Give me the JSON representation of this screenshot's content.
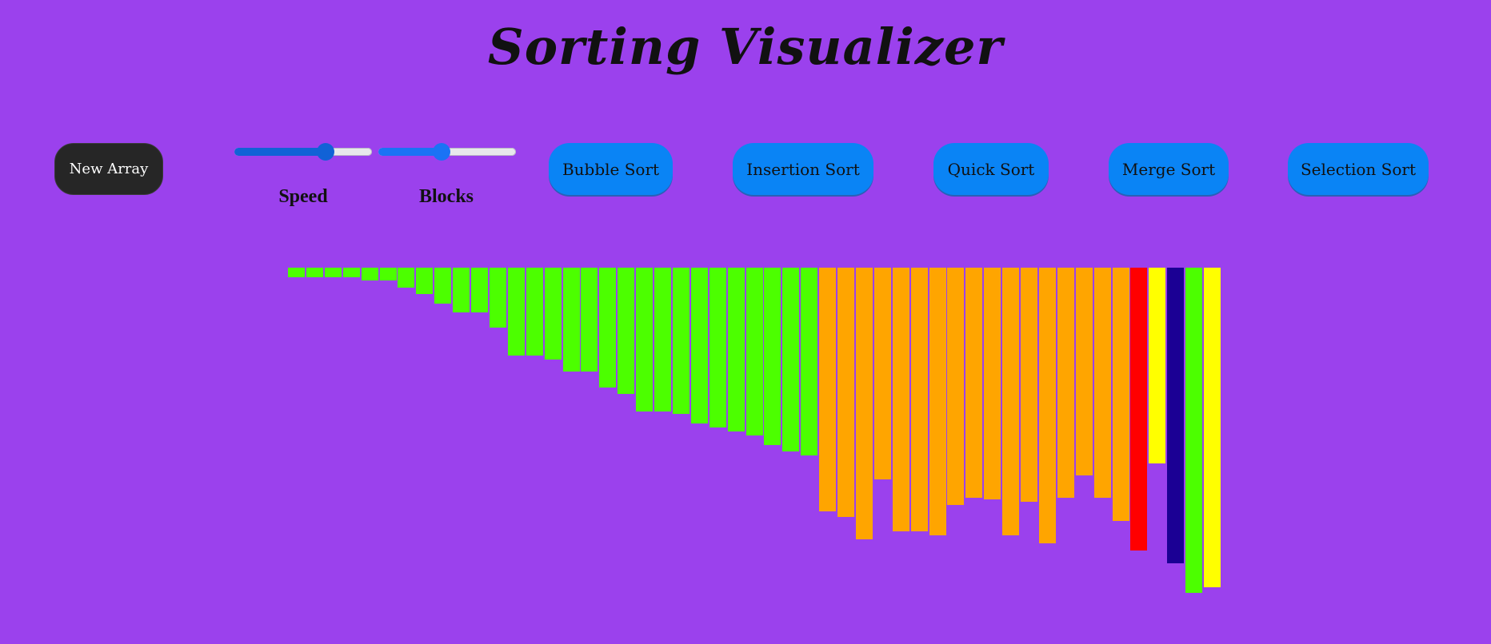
{
  "header": {
    "title": "Sorting Visualizer"
  },
  "controls": {
    "new_array_label": "New Array",
    "speed": {
      "label": "Speed",
      "value_fraction": 0.66
    },
    "blocks": {
      "label": "Blocks",
      "value_fraction": 0.46
    },
    "algorithms": [
      {
        "id": "bubble",
        "label": "Bubble Sort"
      },
      {
        "id": "insertion",
        "label": "Insertion Sort"
      },
      {
        "id": "quick",
        "label": "Quick Sort"
      },
      {
        "id": "merge",
        "label": "Merge Sort"
      },
      {
        "id": "selection",
        "label": "Selection Sort"
      }
    ]
  },
  "colors": {
    "background": "#9b41ed",
    "sorted": "#4cff00",
    "unsorted": "#ffa500",
    "compare": "#ff0000",
    "highlight": "#ffff00",
    "pivot": "#1b0094"
  },
  "array": {
    "values": [
      12,
      12,
      12,
      12,
      16,
      16,
      25,
      33,
      45,
      56,
      56,
      75,
      110,
      110,
      115,
      130,
      130,
      150,
      158,
      180,
      180,
      183,
      195,
      200,
      205,
      210,
      222,
      230,
      235,
      305,
      312,
      340,
      265,
      330,
      330,
      335,
      297,
      288,
      290,
      335,
      293,
      345,
      288,
      260,
      288,
      317,
      354,
      245,
      370,
      407,
      400
    ],
    "states": [
      "sorted",
      "sorted",
      "sorted",
      "sorted",
      "sorted",
      "sorted",
      "sorted",
      "sorted",
      "sorted",
      "sorted",
      "sorted",
      "sorted",
      "sorted",
      "sorted",
      "sorted",
      "sorted",
      "sorted",
      "sorted",
      "sorted",
      "sorted",
      "sorted",
      "sorted",
      "sorted",
      "sorted",
      "sorted",
      "sorted",
      "sorted",
      "sorted",
      "sorted",
      "unsorted",
      "unsorted",
      "unsorted",
      "unsorted",
      "unsorted",
      "unsorted",
      "unsorted",
      "unsorted",
      "unsorted",
      "unsorted",
      "unsorted",
      "unsorted",
      "unsorted",
      "unsorted",
      "unsorted",
      "unsorted",
      "unsorted",
      "compare",
      "highlight",
      "pivot",
      "sorted",
      "highlight"
    ]
  }
}
